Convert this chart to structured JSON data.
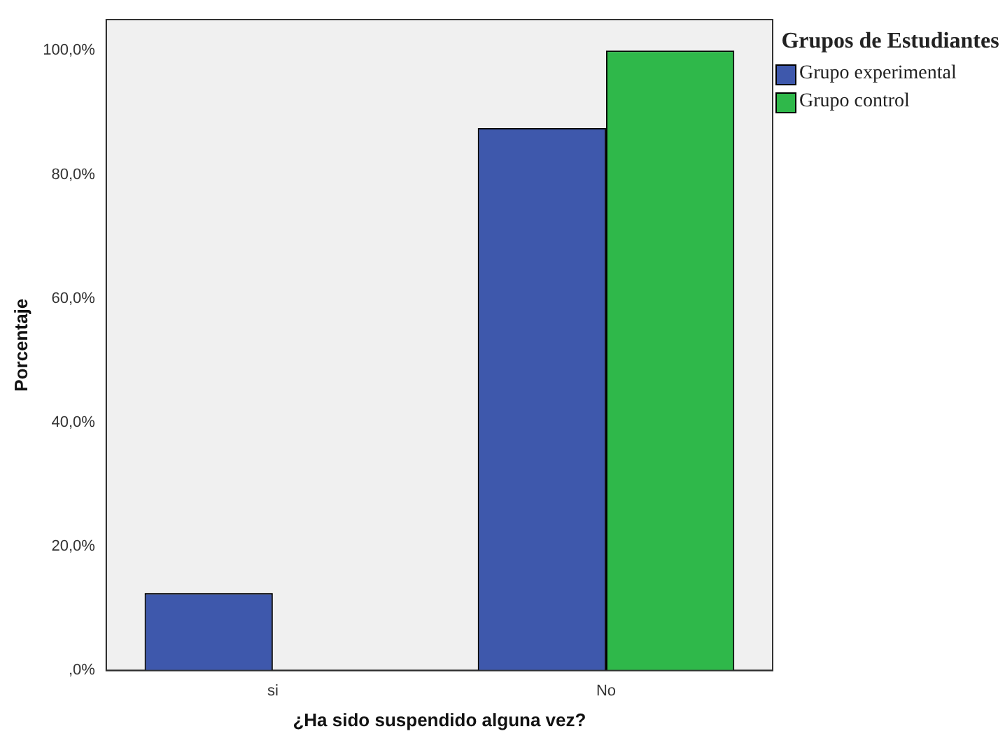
{
  "chart_data": {
    "type": "bar",
    "xlabel": "¿Ha sido suspendido alguna vez?",
    "ylabel": "Porcentaje",
    "legend_title": "Grupos de Estudiantes",
    "categories": [
      "si",
      "No"
    ],
    "series": [
      {
        "name": "Grupo experimental",
        "color": "#3e58ac",
        "values": [
          12.5,
          87.5
        ]
      },
      {
        "name": "Grupo control",
        "color": "#2fb84a",
        "values": [
          0,
          100
        ]
      }
    ],
    "ylim": [
      0,
      105
    ],
    "yticks": [
      {
        "value": 0,
        "label": ",0%"
      },
      {
        "value": 20,
        "label": "20,0%"
      },
      {
        "value": 40,
        "label": "40,0%"
      },
      {
        "value": 60,
        "label": "60,0%"
      },
      {
        "value": 80,
        "label": "80,0%"
      },
      {
        "value": 100,
        "label": "100,0%"
      }
    ],
    "grid": false,
    "legend": "right"
  }
}
